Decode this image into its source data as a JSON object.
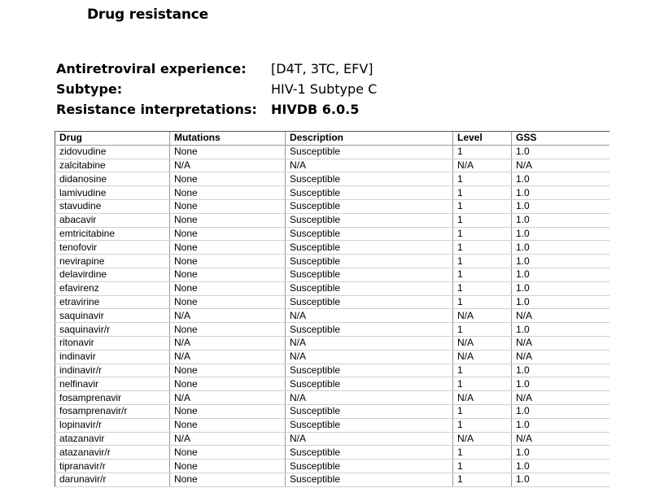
{
  "title": "Drug resistance",
  "info": [
    {
      "label": "Antiretroviral experience:",
      "value": "[D4T, 3TC, EFV]",
      "bold": false
    },
    {
      "label": "Subtype:",
      "value": "HIV-1 Subtype C",
      "bold": false
    },
    {
      "label": "Resistance interpretations:",
      "value": "HIVDB 6.0.5",
      "bold": true
    }
  ],
  "table": {
    "headers": [
      "Drug",
      "Mutations",
      "Description",
      "Level",
      "GSS"
    ],
    "rows": [
      [
        "zidovudine",
        "None",
        "Susceptible",
        "1",
        "1.0"
      ],
      [
        "zalcitabine",
        "N/A",
        "N/A",
        "N/A",
        "N/A"
      ],
      [
        "didanosine",
        "None",
        "Susceptible",
        "1",
        "1.0"
      ],
      [
        "lamivudine",
        "None",
        "Susceptible",
        "1",
        "1.0"
      ],
      [
        "stavudine",
        "None",
        "Susceptible",
        "1",
        "1.0"
      ],
      [
        "abacavir",
        "None",
        "Susceptible",
        "1",
        "1.0"
      ],
      [
        "emtricitabine",
        "None",
        "Susceptible",
        "1",
        "1.0"
      ],
      [
        "tenofovir",
        "None",
        "Susceptible",
        "1",
        "1.0"
      ],
      [
        "nevirapine",
        "None",
        "Susceptible",
        "1",
        "1.0"
      ],
      [
        "delavirdine",
        "None",
        "Susceptible",
        "1",
        "1.0"
      ],
      [
        "efavirenz",
        "None",
        "Susceptible",
        "1",
        "1.0"
      ],
      [
        "etravirine",
        "None",
        "Susceptible",
        "1",
        "1.0"
      ],
      [
        "saquinavir",
        "N/A",
        "N/A",
        "N/A",
        "N/A"
      ],
      [
        "saquinavir/r",
        "None",
        "Susceptible",
        "1",
        "1.0"
      ],
      [
        "ritonavir",
        "N/A",
        "N/A",
        "N/A",
        "N/A"
      ],
      [
        "indinavir",
        "N/A",
        "N/A",
        "N/A",
        "N/A"
      ],
      [
        "indinavir/r",
        "None",
        "Susceptible",
        "1",
        "1.0"
      ],
      [
        "nelfinavir",
        "None",
        "Susceptible",
        "1",
        "1.0"
      ],
      [
        "fosamprenavir",
        "N/A",
        "N/A",
        "N/A",
        "N/A"
      ],
      [
        "fosamprenavir/r",
        "None",
        "Susceptible",
        "1",
        "1.0"
      ],
      [
        "lopinavir/r",
        "None",
        "Susceptible",
        "1",
        "1.0"
      ],
      [
        "atazanavir",
        "N/A",
        "N/A",
        "N/A",
        "N/A"
      ],
      [
        "atazanavir/r",
        "None",
        "Susceptible",
        "1",
        "1.0"
      ],
      [
        "tipranavir/r",
        "None",
        "Susceptible",
        "1",
        "1.0"
      ],
      [
        "darunavir/r",
        "None",
        "Susceptible",
        "1",
        "1.0"
      ]
    ]
  }
}
